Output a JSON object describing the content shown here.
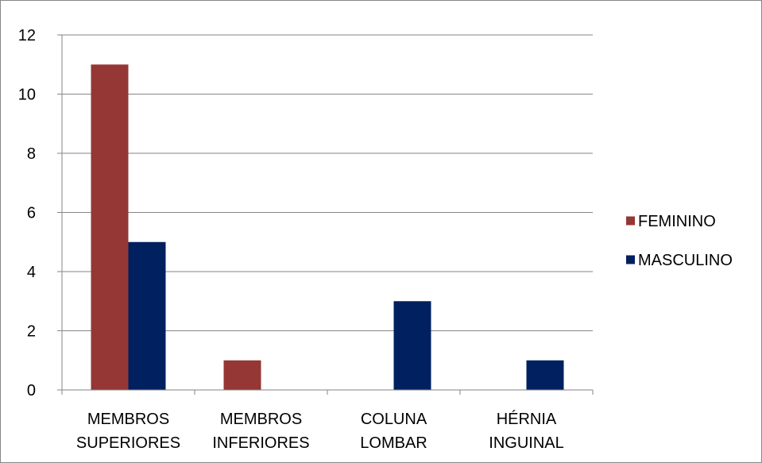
{
  "chart_data": {
    "type": "bar",
    "title": "",
    "xlabel": "",
    "ylabel": "",
    "categories": [
      [
        "MEMBROS",
        "SUPERIORES"
      ],
      [
        "MEMBROS",
        "INFERIORES"
      ],
      [
        "COLUNA",
        "LOMBAR"
      ],
      [
        "HÉRNIA",
        "INGUINAL"
      ]
    ],
    "series": [
      {
        "name": "FEMININO",
        "color": "#953735",
        "values": [
          11,
          1,
          0,
          0
        ]
      },
      {
        "name": "MASCULINO",
        "color": "#002060",
        "values": [
          5,
          0,
          3,
          1
        ]
      }
    ],
    "ylim": [
      0,
      12
    ],
    "yticks": [
      0,
      2,
      4,
      6,
      8,
      10,
      12
    ],
    "grid": true,
    "legend_position": "right"
  }
}
